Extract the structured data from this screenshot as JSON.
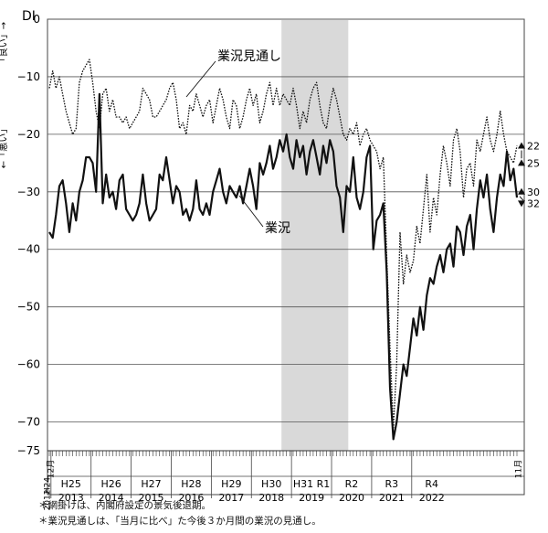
{
  "chart_data": {
    "type": "line",
    "ylabel": "DI",
    "ylim": [
      -75,
      0
    ],
    "yticks": [
      0,
      -10,
      -20,
      -30,
      -40,
      -50,
      -60,
      -70,
      -75
    ],
    "axis_note_good": "「良い」→",
    "axis_note_bad": "←「悪い」",
    "recession_shade": {
      "from": "2018-10",
      "to": "2020-05"
    },
    "x_start_label_month": "12月",
    "x_start_label_era": "H24",
    "x_start_label_year": "2012",
    "x_end_label": "11月",
    "year_groups": [
      {
        "era": "H25",
        "year": "2013"
      },
      {
        "era": "H26",
        "year": "2014"
      },
      {
        "era": "H27",
        "year": "2015"
      },
      {
        "era": "H28",
        "year": "2016"
      },
      {
        "era": "H29",
        "year": "2017"
      },
      {
        "era": "H30",
        "year": "2018"
      },
      {
        "era": "H31 R1",
        "year": "2019"
      },
      {
        "era": "R2",
        "year": "2020"
      },
      {
        "era": "R3",
        "year": "2021"
      },
      {
        "era": "R4",
        "year": "2022"
      }
    ],
    "series": [
      {
        "name": "業況見通し",
        "style": "dotted",
        "start": "2012-12",
        "values": [
          -12,
          -9,
          -12,
          -10,
          -13,
          -16,
          -18,
          -20,
          -19,
          -11,
          -9,
          -8,
          -7,
          -11,
          -16,
          -19,
          -13,
          -12,
          -16,
          -14,
          -17,
          -17,
          -18,
          -17,
          -19,
          -18,
          -17,
          -16,
          -12,
          -13,
          -14,
          -17,
          -17,
          -16,
          -15,
          -14,
          -12,
          -11,
          -14,
          -19,
          -18,
          -20,
          -15,
          -16,
          -13,
          -15,
          -17,
          -15,
          -14,
          -18,
          -15,
          -12,
          -14,
          -17,
          -19,
          -14,
          -15,
          -19,
          -17,
          -14,
          -12,
          -15,
          -13,
          -18,
          -16,
          -13,
          -11,
          -15,
          -12,
          -15,
          -13,
          -14,
          -15,
          -12,
          -15,
          -19,
          -16,
          -18,
          -14,
          -12,
          -11,
          -15,
          -18,
          -19,
          -15,
          -12,
          -14,
          -17,
          -20,
          -21,
          -19,
          -20,
          -18,
          -22,
          -20,
          -19,
          -21,
          -22,
          -23,
          -26,
          -24,
          -41,
          -57,
          -71,
          -60,
          -37,
          -46,
          -41,
          -44,
          -42,
          -36,
          -39,
          -33,
          -27,
          -37,
          -31,
          -34,
          -27,
          -22,
          -25,
          -29,
          -21,
          -19,
          -23,
          -31,
          -26,
          -25,
          -29,
          -21,
          -23,
          -20,
          -17,
          -21,
          -23,
          -20,
          -16,
          -20,
          -23,
          -24,
          -25,
          -22
        ]
      },
      {
        "name": "業況",
        "style": "solid",
        "start": "2012-12",
        "values": [
          -37,
          -38,
          -34,
          -29,
          -28,
          -32,
          -37,
          -32,
          -35,
          -30,
          -28,
          -24,
          -24,
          -25,
          -30,
          -13,
          -32,
          -27,
          -31,
          -30,
          -33,
          -28,
          -27,
          -33,
          -34,
          -35,
          -34,
          -32,
          -27,
          -32,
          -35,
          -34,
          -33,
          -27,
          -28,
          -24,
          -28,
          -32,
          -29,
          -30,
          -34,
          -33,
          -35,
          -33,
          -28,
          -33,
          -34,
          -32,
          -34,
          -30,
          -28,
          -26,
          -30,
          -32,
          -29,
          -30,
          -31,
          -29,
          -32,
          -29,
          -26,
          -29,
          -33,
          -25,
          -27,
          -25,
          -22,
          -26,
          -24,
          -21,
          -23,
          -20,
          -24,
          -26,
          -21,
          -24,
          -22,
          -27,
          -23,
          -21,
          -24,
          -27,
          -22,
          -25,
          -21,
          -23,
          -29,
          -31,
          -37,
          -29,
          -30,
          -24,
          -31,
          -33,
          -30,
          -24,
          -22,
          -40,
          -35,
          -34,
          -32,
          -44,
          -64,
          -73,
          -70,
          -65,
          -60,
          -62,
          -57,
          -52,
          -55,
          -50,
          -54,
          -48,
          -45,
          -46,
          -43,
          -41,
          -44,
          -40,
          -39,
          -43,
          -36,
          -37,
          -41,
          -36,
          -34,
          -40,
          -33,
          -28,
          -31,
          -27,
          -33,
          -37,
          -31,
          -27,
          -29,
          -23,
          -28,
          -26,
          -31
        ]
      }
    ],
    "series_labels": [
      {
        "text": "業況見通し"
      },
      {
        "text": "業況"
      }
    ],
    "annotations": [
      {
        "text": "22",
        "kind": "up"
      },
      {
        "text": "25",
        "kind": "from"
      },
      {
        "text": "30",
        "kind": "from"
      },
      {
        "text": "32",
        "kind": "down"
      }
    ],
    "footnotes": [
      "＊網掛けは、内閣府設定の景気後退期。",
      "＊業況見通しは、「当月に比べ」た今後３か月間の業況の見通し。"
    ]
  }
}
